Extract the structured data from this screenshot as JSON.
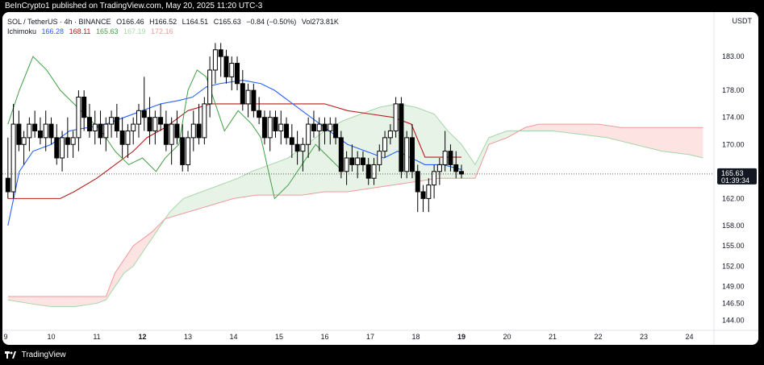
{
  "header": {
    "publish_text": "BeInCrypto1 published on TradingView.com, May 20, 2025 11:20 UTC-3"
  },
  "footer": {
    "brand": "TradingView"
  },
  "legend": {
    "symbol_line": "SOL / TetherUS · 4h · BINANCE",
    "ohlc": {
      "o": "O166.46",
      "h": "H166.52",
      "l": "L164.51",
      "c": "C165.63",
      "chg": "−0.84 (−0.50%)",
      "vol": "Vol273.81K"
    },
    "indicator": "Ichimoku",
    "values": [
      {
        "v": "166.28",
        "color": "#2962ff"
      },
      {
        "v": "168.11",
        "color": "#b71c1c"
      },
      {
        "v": "165.63",
        "color": "#43a047"
      },
      {
        "v": "167.19",
        "color": "#a5d6a7"
      },
      {
        "v": "172.16",
        "color": "#ef9a9a"
      }
    ]
  },
  "currency": "USDT",
  "chart_data": {
    "type": "candlestick",
    "symbol": "SOL / TetherUS",
    "timeframe": "4h",
    "exchange": "BINANCE",
    "price_axis": {
      "ticks": [
        144.0,
        146.5,
        149.0,
        152.0,
        155.0,
        158.0,
        162.0,
        166.0,
        170.0,
        174.0,
        178.0,
        183.0
      ],
      "labels": [
        "144.00",
        "146.50",
        "149.00",
        "152.00",
        "155.00",
        "158.00",
        "162.00",
        "",
        "170.00",
        "174.00",
        "178.00",
        "183.00"
      ],
      "ylim": [
        142.5,
        186.0
      ]
    },
    "time_axis": {
      "labels": [
        "9",
        "10",
        "11",
        "12",
        "13",
        "14",
        "15",
        "16",
        "17",
        "18",
        "19",
        "20",
        "21",
        "22",
        "23",
        "24"
      ],
      "bold": [
        "12",
        "19"
      ]
    },
    "last_price": {
      "value": 165.63,
      "label": "165.63",
      "countdown": "01:39:34"
    },
    "colors": {
      "tenkan": "#2962ff",
      "kijun": "#b71c1c",
      "chikou": "#43a047",
      "span_a": "#a5d6a7",
      "span_b": "#ef9a9a"
    },
    "candles": [
      [
        9.05,
        165,
        171,
        162,
        163
      ],
      [
        9.17,
        163,
        176,
        162,
        173
      ],
      [
        9.29,
        173,
        175,
        169,
        170
      ],
      [
        9.4,
        170,
        172,
        167,
        171
      ],
      [
        9.52,
        171,
        174,
        169,
        173
      ],
      [
        9.64,
        173,
        175,
        171,
        172
      ],
      [
        9.76,
        172,
        174,
        170,
        171
      ],
      [
        9.88,
        171,
        175,
        169,
        173
      ],
      [
        10.0,
        173,
        174,
        170,
        171
      ],
      [
        10.12,
        171,
        173,
        167,
        168
      ],
      [
        10.24,
        168,
        172,
        166,
        171
      ],
      [
        10.36,
        171,
        174,
        168,
        170
      ],
      [
        10.48,
        170,
        172,
        168,
        171
      ],
      [
        10.6,
        171,
        178,
        169,
        177
      ],
      [
        10.72,
        177,
        178,
        172,
        174
      ],
      [
        10.84,
        174,
        176,
        171,
        172
      ],
      [
        10.96,
        172,
        175,
        170,
        173
      ],
      [
        11.08,
        173,
        175,
        170,
        171
      ],
      [
        11.2,
        171,
        174,
        169,
        173
      ],
      [
        11.32,
        173,
        175,
        171,
        174
      ],
      [
        11.44,
        174,
        176,
        171,
        172
      ],
      [
        11.56,
        172,
        174,
        168,
        170
      ],
      [
        11.68,
        170,
        173,
        168,
        172
      ],
      [
        11.8,
        172,
        174,
        170,
        173
      ],
      [
        11.92,
        173,
        176,
        171,
        175
      ],
      [
        12.04,
        175,
        180,
        172,
        174
      ],
      [
        12.16,
        174,
        177,
        170,
        172
      ],
      [
        12.28,
        172,
        175,
        170,
        174
      ],
      [
        12.4,
        174,
        176,
        172,
        173
      ],
      [
        12.52,
        173,
        175,
        169,
        170
      ],
      [
        12.64,
        170,
        174,
        167,
        173
      ],
      [
        12.76,
        173,
        175,
        170,
        171
      ],
      [
        12.88,
        171,
        173,
        166,
        167
      ],
      [
        13.0,
        167,
        172,
        166,
        171
      ],
      [
        13.12,
        171,
        175,
        169,
        173
      ],
      [
        13.24,
        173,
        176,
        170,
        171
      ],
      [
        13.36,
        171,
        177,
        170,
        176
      ],
      [
        13.48,
        176,
        183,
        174,
        181
      ],
      [
        13.6,
        181,
        185,
        179,
        184
      ],
      [
        13.72,
        184,
        185,
        180,
        183
      ],
      [
        13.84,
        183,
        184,
        179,
        180
      ],
      [
        13.96,
        180,
        183,
        178,
        182
      ],
      [
        14.08,
        182,
        183,
        178,
        179
      ],
      [
        14.2,
        179,
        181,
        175,
        176
      ],
      [
        14.32,
        176,
        179,
        174,
        178
      ],
      [
        14.44,
        178,
        179,
        174,
        175
      ],
      [
        14.56,
        175,
        177,
        173,
        174
      ],
      [
        14.68,
        174,
        175,
        170,
        171
      ],
      [
        14.8,
        171,
        175,
        169,
        174
      ],
      [
        14.92,
        174,
        175,
        171,
        172
      ],
      [
        15.04,
        172,
        175,
        170,
        173
      ],
      [
        15.16,
        173,
        174,
        170,
        171
      ],
      [
        15.28,
        171,
        173,
        168,
        170
      ],
      [
        15.4,
        170,
        172,
        167,
        169
      ],
      [
        15.52,
        169,
        171,
        166,
        170
      ],
      [
        15.64,
        170,
        174,
        168,
        173
      ],
      [
        15.76,
        173,
        175,
        171,
        172
      ],
      [
        15.88,
        172,
        174,
        169,
        173
      ],
      [
        16.0,
        173,
        174,
        170,
        172
      ],
      [
        16.12,
        172,
        174,
        170,
        173
      ],
      [
        16.24,
        173,
        174,
        170,
        171
      ],
      [
        16.36,
        171,
        172,
        165,
        166
      ],
      [
        16.48,
        166,
        169,
        164,
        168
      ],
      [
        16.6,
        168,
        170,
        166,
        167
      ],
      [
        16.72,
        167,
        169,
        165,
        168
      ],
      [
        16.84,
        168,
        169,
        166,
        167
      ],
      [
        16.96,
        167,
        168,
        164,
        165
      ],
      [
        17.08,
        165,
        168,
        164,
        167
      ],
      [
        17.2,
        167,
        170,
        166,
        169
      ],
      [
        17.32,
        169,
        172,
        168,
        171
      ],
      [
        17.44,
        171,
        173,
        170,
        172
      ],
      [
        17.56,
        172,
        177,
        171,
        176
      ],
      [
        17.68,
        176,
        177,
        165,
        166
      ],
      [
        17.8,
        166,
        172,
        165,
        171
      ],
      [
        17.92,
        171,
        173,
        165,
        166
      ],
      [
        18.04,
        166,
        167,
        160,
        163
      ],
      [
        18.16,
        163,
        164,
        160,
        162
      ],
      [
        18.28,
        162,
        165,
        160,
        164
      ],
      [
        18.4,
        164,
        167,
        162,
        166
      ],
      [
        18.52,
        166,
        168,
        164,
        167
      ],
      [
        18.64,
        167,
        172,
        166,
        169
      ],
      [
        18.76,
        169,
        170,
        166,
        167
      ],
      [
        18.88,
        167,
        169,
        165,
        166
      ],
      [
        19.0,
        166,
        167,
        165,
        165.63
      ]
    ],
    "tenkan": [
      [
        9.05,
        158
      ],
      [
        9.3,
        166
      ],
      [
        9.6,
        169
      ],
      [
        10.0,
        170
      ],
      [
        10.4,
        172
      ],
      [
        10.8,
        172.5
      ],
      [
        11.2,
        173
      ],
      [
        11.6,
        174
      ],
      [
        12.0,
        175
      ],
      [
        12.4,
        176
      ],
      [
        12.8,
        176.5
      ],
      [
        13.1,
        177
      ],
      [
        13.4,
        178.5
      ],
      [
        13.7,
        179
      ],
      [
        14.2,
        179.5
      ],
      [
        14.6,
        179
      ],
      [
        14.9,
        178
      ],
      [
        15.3,
        176
      ],
      [
        15.7,
        174
      ],
      [
        16.1,
        172
      ],
      [
        16.5,
        170
      ],
      [
        16.9,
        169
      ],
      [
        17.3,
        168
      ],
      [
        17.6,
        169
      ],
      [
        17.9,
        168
      ],
      [
        18.2,
        167
      ],
      [
        18.6,
        167
      ],
      [
        19.0,
        166.28
      ]
    ],
    "kijun": [
      [
        9.05,
        162
      ],
      [
        10.2,
        162
      ],
      [
        10.5,
        163
      ],
      [
        11.0,
        165
      ],
      [
        11.4,
        167
      ],
      [
        11.8,
        169
      ],
      [
        12.1,
        171
      ],
      [
        12.5,
        172.5
      ],
      [
        13.0,
        175
      ],
      [
        13.5,
        176
      ],
      [
        14.0,
        176
      ],
      [
        15.0,
        176
      ],
      [
        15.5,
        176
      ],
      [
        16.0,
        176
      ],
      [
        16.5,
        175
      ],
      [
        17.0,
        174.5
      ],
      [
        17.5,
        174
      ],
      [
        17.9,
        173
      ],
      [
        18.2,
        168.11
      ],
      [
        19.0,
        168.11
      ]
    ],
    "chikou": [
      [
        9.05,
        173
      ],
      [
        9.3,
        178
      ],
      [
        9.6,
        183
      ],
      [
        9.9,
        181
      ],
      [
        10.2,
        178
      ],
      [
        10.5,
        176
      ],
      [
        10.8,
        174
      ],
      [
        11.1,
        172
      ],
      [
        11.4,
        169
      ],
      [
        11.7,
        167
      ],
      [
        12.0,
        168
      ],
      [
        12.3,
        166
      ],
      [
        12.5,
        168
      ],
      [
        12.8,
        170
      ],
      [
        13.0,
        178
      ],
      [
        13.2,
        181
      ],
      [
        13.4,
        180
      ],
      [
        13.6,
        176
      ],
      [
        13.8,
        172
      ],
      [
        14.1,
        175
      ],
      [
        14.4,
        173
      ],
      [
        14.6,
        171
      ],
      [
        14.9,
        162
      ],
      [
        15.2,
        164
      ],
      [
        15.5,
        167
      ],
      [
        15.8,
        170
      ],
      [
        16.1,
        168
      ],
      [
        16.4,
        166
      ]
    ],
    "span_a": [
      [
        9.05,
        147
      ],
      [
        9.5,
        146.5
      ],
      [
        10.0,
        146
      ],
      [
        10.5,
        146
      ],
      [
        11.0,
        146.5
      ],
      [
        11.2,
        147
      ],
      [
        11.4,
        149
      ],
      [
        11.6,
        151
      ],
      [
        11.8,
        152
      ],
      [
        12.0,
        154
      ],
      [
        12.3,
        157
      ],
      [
        12.6,
        160
      ],
      [
        12.9,
        162
      ],
      [
        13.3,
        163
      ],
      [
        13.7,
        164
      ],
      [
        14.1,
        165
      ],
      [
        14.4,
        166
      ],
      [
        14.8,
        167
      ],
      [
        15.2,
        168
      ],
      [
        15.6,
        170
      ],
      [
        16.0,
        172
      ],
      [
        16.4,
        173.5
      ],
      [
        16.8,
        174.5
      ],
      [
        17.2,
        175.5
      ],
      [
        17.6,
        176
      ],
      [
        18.0,
        175.5
      ],
      [
        18.4,
        174.5
      ],
      [
        18.7,
        172
      ],
      [
        19.0,
        170
      ],
      [
        19.3,
        167
      ],
      [
        19.6,
        171
      ],
      [
        20.0,
        172
      ],
      [
        20.4,
        172
      ],
      [
        21.0,
        172
      ],
      [
        21.6,
        171.5
      ],
      [
        22.2,
        171
      ],
      [
        22.8,
        170
      ],
      [
        23.4,
        169
      ],
      [
        24.0,
        168.5
      ],
      [
        24.3,
        168
      ]
    ],
    "span_b": [
      [
        9.05,
        147.5
      ],
      [
        10.0,
        147.5
      ],
      [
        11.0,
        147.5
      ],
      [
        11.2,
        147.5
      ],
      [
        11.4,
        151
      ],
      [
        11.8,
        155
      ],
      [
        12.2,
        157
      ],
      [
        12.5,
        159
      ],
      [
        13.0,
        160
      ],
      [
        13.5,
        161
      ],
      [
        14.0,
        162
      ],
      [
        14.5,
        162.5
      ],
      [
        15.0,
        162.5
      ],
      [
        15.5,
        162.5
      ],
      [
        16.0,
        163
      ],
      [
        16.5,
        163
      ],
      [
        17.0,
        163.5
      ],
      [
        17.5,
        164
      ],
      [
        18.0,
        164.5
      ],
      [
        18.5,
        165
      ],
      [
        19.0,
        165
      ],
      [
        19.3,
        165
      ],
      [
        19.6,
        170
      ],
      [
        20.0,
        171
      ],
      [
        20.4,
        172.5
      ],
      [
        20.7,
        173
      ],
      [
        21.0,
        173
      ],
      [
        21.5,
        173
      ],
      [
        22.0,
        173
      ],
      [
        22.5,
        172.5
      ],
      [
        23.0,
        172.5
      ],
      [
        23.5,
        172.5
      ],
      [
        24.0,
        172.5
      ],
      [
        24.3,
        172.5
      ]
    ]
  }
}
